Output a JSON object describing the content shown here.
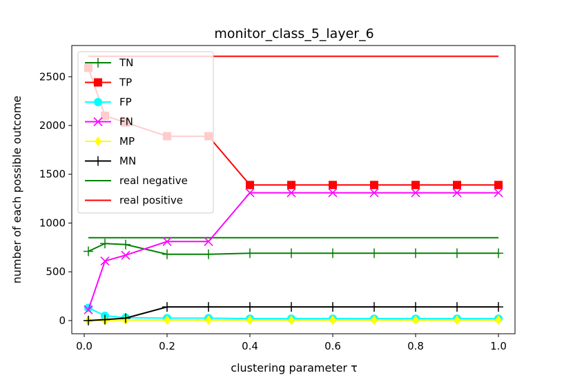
{
  "chart_data": {
    "type": "line",
    "title": "monitor_class_5_layer_6",
    "xlabel": "clustering parameter τ",
    "ylabel": "number of each possible outcome",
    "xlim": [
      -0.03,
      1.04
    ],
    "ylim": [
      -135,
      2820
    ],
    "xticks": [
      0.0,
      0.2,
      0.4,
      0.6,
      0.8,
      1.0
    ],
    "xtick_labels": [
      "0.0",
      "0.2",
      "0.4",
      "0.6",
      "0.8",
      "1.0"
    ],
    "yticks": [
      0,
      500,
      1000,
      1500,
      2000,
      2500
    ],
    "ytick_labels": [
      "0",
      "500",
      "1000",
      "1500",
      "2000",
      "2500"
    ],
    "grid": false,
    "legend_position": "upper-left",
    "x": [
      0.01,
      0.05,
      0.1,
      0.2,
      0.3,
      0.4,
      0.5,
      0.6,
      0.7,
      0.8,
      0.9,
      1.0
    ],
    "series": [
      {
        "name": "TN",
        "color": "#008000",
        "marker": "plus",
        "values": [
          710,
          790,
          780,
          680,
          680,
          690,
          690,
          690,
          690,
          690,
          690,
          690
        ]
      },
      {
        "name": "TP",
        "color": "#ff0000",
        "marker": "square",
        "values": [
          2590,
          2100,
          2030,
          1890,
          1890,
          1390,
          1390,
          1390,
          1390,
          1390,
          1390,
          1390
        ]
      },
      {
        "name": "FP",
        "color": "#00ffff",
        "marker": "circle",
        "values": [
          130,
          50,
          30,
          25,
          25,
          20,
          20,
          20,
          20,
          20,
          20,
          20
        ]
      },
      {
        "name": "FN",
        "color": "#ff00ff",
        "marker": "x",
        "values": [
          110,
          610,
          670,
          810,
          810,
          1310,
          1310,
          1310,
          1310,
          1310,
          1310,
          1310
        ]
      },
      {
        "name": "MP",
        "color": "#ffff00",
        "marker": "diamond",
        "values": [
          0,
          0,
          5,
          5,
          5,
          5,
          5,
          5,
          5,
          5,
          5,
          5
        ]
      },
      {
        "name": "MN",
        "color": "#000000",
        "marker": "plus",
        "values": [
          0,
          10,
          25,
          140,
          140,
          140,
          140,
          140,
          140,
          140,
          140,
          140
        ]
      },
      {
        "name": "real negative",
        "color": "#008000",
        "marker": "none",
        "x": [
          0.01,
          1.0
        ],
        "values": [
          850,
          850
        ]
      },
      {
        "name": "real positive",
        "color": "#ff0000",
        "marker": "none",
        "x": [
          0.01,
          1.0
        ],
        "values": [
          2710,
          2710
        ]
      }
    ]
  }
}
